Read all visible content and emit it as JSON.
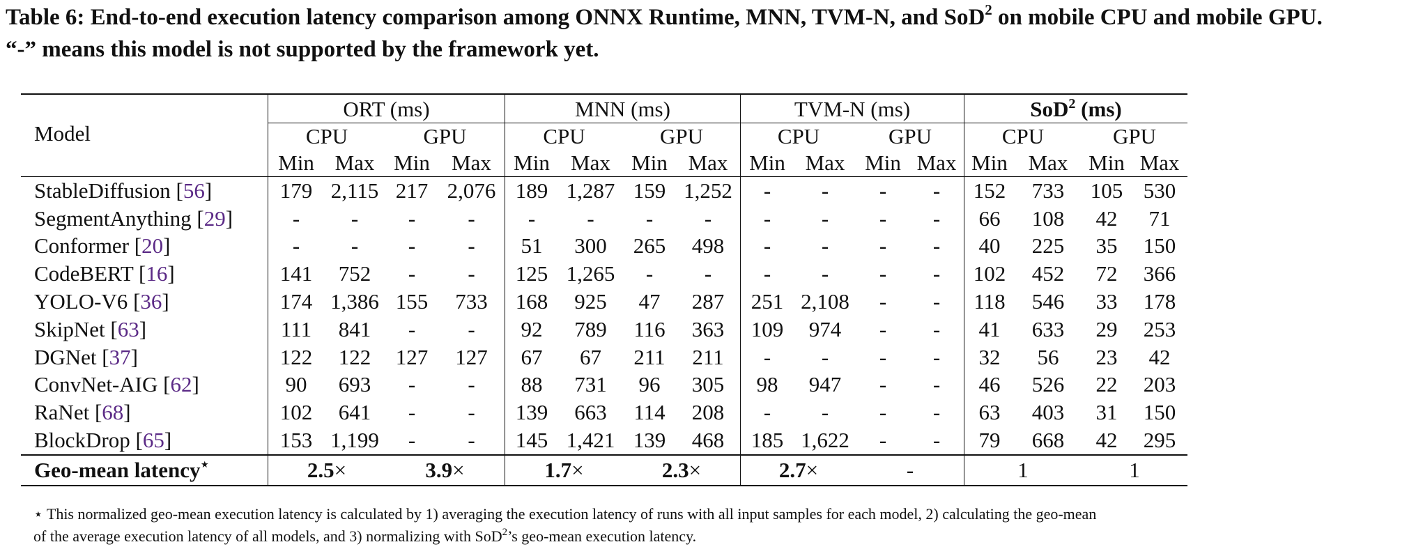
{
  "caption": {
    "label": "Table 6:",
    "text_before_sup": " End-to-end execution latency comparison among ONNX Runtime, MNN, TVM-N, and SoD",
    "sup": "2",
    "text_after_sup": " on mobile CPU and mobile GPU.",
    "line2": "“-” means this model is not supported by the framework yet."
  },
  "header": {
    "model": "Model",
    "frameworks": [
      {
        "name": "ORT (ms)",
        "bold": false
      },
      {
        "name": "MNN (ms)",
        "bold": false
      },
      {
        "name": "TVM-N (ms)",
        "bold": false
      },
      {
        "name": "SoD",
        "sup": "2",
        "suffix": " (ms)",
        "bold": true
      }
    ],
    "devices": [
      "CPU",
      "GPU"
    ],
    "stats": [
      "Min",
      "Max"
    ]
  },
  "rows": [
    {
      "model": "StableDiffusion",
      "ref": "56",
      "values": [
        "179",
        "2,115",
        "217",
        "2,076",
        "189",
        "1,287",
        "159",
        "1,252",
        "-",
        "-",
        "-",
        "-",
        "152",
        "733",
        "105",
        "530"
      ]
    },
    {
      "model": "SegmentAnything",
      "ref": "29",
      "values": [
        "-",
        "-",
        "-",
        "-",
        "-",
        "-",
        "-",
        "-",
        "-",
        "-",
        "-",
        "-",
        "66",
        "108",
        "42",
        "71"
      ]
    },
    {
      "model": "Conformer",
      "ref": "20",
      "values": [
        "-",
        "-",
        "-",
        "-",
        "51",
        "300",
        "265",
        "498",
        "-",
        "-",
        "-",
        "-",
        "40",
        "225",
        "35",
        "150"
      ]
    },
    {
      "model": "CodeBERT",
      "ref": "16",
      "values": [
        "141",
        "752",
        "-",
        "-",
        "125",
        "1,265",
        "-",
        "-",
        "-",
        "-",
        "-",
        "-",
        "102",
        "452",
        "72",
        "366"
      ]
    },
    {
      "model": "YOLO-V6",
      "ref": "36",
      "values": [
        "174",
        "1,386",
        "155",
        "733",
        "168",
        "925",
        "47",
        "287",
        "251",
        "2,108",
        "-",
        "-",
        "118",
        "546",
        "33",
        "178"
      ]
    },
    {
      "model": "SkipNet",
      "ref": "63",
      "values": [
        "111",
        "841",
        "-",
        "-",
        "92",
        "789",
        "116",
        "363",
        "109",
        "974",
        "-",
        "-",
        "41",
        "633",
        "29",
        "253"
      ]
    },
    {
      "model": "DGNet",
      "ref": "37",
      "values": [
        "122",
        "122",
        "127",
        "127",
        "67",
        "67",
        "211",
        "211",
        "-",
        "-",
        "-",
        "-",
        "32",
        "56",
        "23",
        "42"
      ]
    },
    {
      "model": "ConvNet-AIG",
      "ref": "62",
      "values": [
        "90",
        "693",
        "-",
        "-",
        "88",
        "731",
        "96",
        "305",
        "98",
        "947",
        "-",
        "-",
        "46",
        "526",
        "22",
        "203"
      ]
    },
    {
      "model": "RaNet",
      "ref": "68",
      "values": [
        "102",
        "641",
        "-",
        "-",
        "139",
        "663",
        "114",
        "208",
        "-",
        "-",
        "-",
        "-",
        "63",
        "403",
        "31",
        "150"
      ]
    },
    {
      "model": "BlockDrop",
      "ref": "65",
      "values": [
        "153",
        "1,199",
        "-",
        "-",
        "145",
        "1,421",
        "139",
        "468",
        "185",
        "1,622",
        "-",
        "-",
        "79",
        "668",
        "42",
        "295"
      ]
    }
  ],
  "geomean": {
    "label": "Geo-mean latency",
    "star": "⋆",
    "values": [
      {
        "num": "2.5",
        "unit": "×",
        "bold": true
      },
      {
        "num": "3.9",
        "unit": "×",
        "bold": true
      },
      {
        "num": "1.7",
        "unit": "×",
        "bold": true
      },
      {
        "num": "2.3",
        "unit": "×",
        "bold": true
      },
      {
        "num": "2.7",
        "unit": "×",
        "bold": true
      },
      {
        "num": "-",
        "unit": "",
        "bold": false
      },
      {
        "num": "1",
        "unit": "",
        "bold": false
      },
      {
        "num": "1",
        "unit": "",
        "bold": false
      }
    ]
  },
  "footnote": {
    "star": "⋆",
    "line1": " This normalized geo-mean execution latency is calculated by 1) averaging the execution latency of runs with all input samples for each model, 2) calculating the geo-mean",
    "line2_before": "of the average execution latency of all models, and 3) normalizing with SoD",
    "line2_sup": "2",
    "line2_after": "’s geo-mean execution latency."
  },
  "colors": {
    "reference_link": "#5b2a86",
    "text": "#111111"
  }
}
